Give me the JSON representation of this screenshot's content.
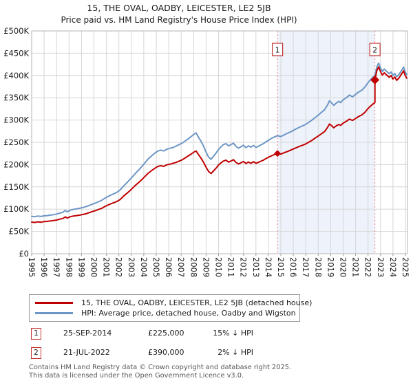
{
  "chart_data": {
    "type": "line",
    "title": "15, THE OVAL, OADBY, LEICESTER, LE2 5JB",
    "subtitle": "Price paid vs. HM Land Registry's House Price Index (HPI)",
    "ylim_gbp": [
      0,
      500000
    ],
    "y_tick_labels": [
      "£0",
      "£50K",
      "£100K",
      "£150K",
      "£200K",
      "£250K",
      "£300K",
      "£350K",
      "£400K",
      "£450K",
      "£500K"
    ],
    "x_tick_labels": [
      "1995",
      "1996",
      "1997",
      "1998",
      "1999",
      "2000",
      "2001",
      "2002",
      "2003",
      "2004",
      "2005",
      "2006",
      "2007",
      "2008",
      "2009",
      "2010",
      "2011",
      "2012",
      "2013",
      "2014",
      "2015",
      "2016",
      "2017",
      "2018",
      "2019",
      "2020",
      "2021",
      "2022",
      "2023",
      "2024",
      "2025"
    ],
    "grid": true,
    "legend_position": "bottom",
    "highlight_band": {
      "from_year": 2014.73,
      "to_year": 2022.55,
      "color": "#edf2fb"
    },
    "marker_line_color": "#f47d7d",
    "series": [
      {
        "id": "hpi-line",
        "name": "HPI: Average price, detached house, Oadby and Wigston",
        "color": "#6c96c6",
        "points_year_gbpk": [
          [
            1995.0,
            84
          ],
          [
            1995.25,
            83
          ],
          [
            1995.5,
            84.5
          ],
          [
            1995.75,
            83.5
          ],
          [
            1996.0,
            85
          ],
          [
            1996.25,
            85.5
          ],
          [
            1996.5,
            86.5
          ],
          [
            1996.75,
            87.5
          ],
          [
            1997.0,
            89
          ],
          [
            1997.25,
            91
          ],
          [
            1997.5,
            93
          ],
          [
            1997.7,
            97
          ],
          [
            1997.85,
            94
          ],
          [
            1998.1,
            97.5
          ],
          [
            1998.35,
            99.5
          ],
          [
            1998.6,
            100.5
          ],
          [
            1998.85,
            102
          ],
          [
            1999.1,
            103.5
          ],
          [
            1999.35,
            105.5
          ],
          [
            1999.6,
            108
          ],
          [
            1999.85,
            111
          ],
          [
            2000.1,
            113.5
          ],
          [
            2000.35,
            116.5
          ],
          [
            2000.6,
            119.5
          ],
          [
            2000.85,
            124
          ],
          [
            2001.1,
            128
          ],
          [
            2001.35,
            131.5
          ],
          [
            2001.6,
            134.5
          ],
          [
            2001.85,
            138
          ],
          [
            2002.1,
            143
          ],
          [
            2002.35,
            151
          ],
          [
            2002.6,
            158
          ],
          [
            2002.85,
            165.5
          ],
          [
            2003.1,
            173
          ],
          [
            2003.35,
            181
          ],
          [
            2003.6,
            188
          ],
          [
            2003.85,
            196
          ],
          [
            2004.1,
            204
          ],
          [
            2004.35,
            212.5
          ],
          [
            2004.6,
            219
          ],
          [
            2004.85,
            225
          ],
          [
            2005.1,
            230
          ],
          [
            2005.35,
            232.5
          ],
          [
            2005.6,
            230.5
          ],
          [
            2005.85,
            234.5
          ],
          [
            2006.1,
            236.5
          ],
          [
            2006.35,
            238.5
          ],
          [
            2006.6,
            241.5
          ],
          [
            2006.85,
            245
          ],
          [
            2007.1,
            248.5
          ],
          [
            2007.35,
            253.5
          ],
          [
            2007.6,
            258.5
          ],
          [
            2007.85,
            264
          ],
          [
            2008.05,
            269
          ],
          [
            2008.2,
            271
          ],
          [
            2008.4,
            261
          ],
          [
            2008.6,
            252
          ],
          [
            2008.8,
            241
          ],
          [
            2009.0,
            228
          ],
          [
            2009.2,
            217
          ],
          [
            2009.4,
            212
          ],
          [
            2009.6,
            219
          ],
          [
            2009.8,
            226
          ],
          [
            2010.0,
            234
          ],
          [
            2010.2,
            240
          ],
          [
            2010.4,
            245
          ],
          [
            2010.6,
            247
          ],
          [
            2010.8,
            242
          ],
          [
            2011.0,
            245
          ],
          [
            2011.2,
            248
          ],
          [
            2011.4,
            241
          ],
          [
            2011.6,
            237
          ],
          [
            2011.8,
            240
          ],
          [
            2012.0,
            243.5
          ],
          [
            2012.2,
            238
          ],
          [
            2012.4,
            242
          ],
          [
            2012.6,
            239
          ],
          [
            2012.8,
            243
          ],
          [
            2013.0,
            238.5
          ],
          [
            2013.2,
            241
          ],
          [
            2013.4,
            244
          ],
          [
            2013.6,
            247
          ],
          [
            2013.8,
            251
          ],
          [
            2014.0,
            254.5
          ],
          [
            2014.2,
            258
          ],
          [
            2014.4,
            261
          ],
          [
            2014.6,
            263.5
          ],
          [
            2014.73,
            265
          ],
          [
            2015.0,
            263
          ],
          [
            2015.25,
            266.5
          ],
          [
            2015.5,
            270
          ],
          [
            2015.75,
            273
          ],
          [
            2016.0,
            276.5
          ],
          [
            2016.25,
            280.5
          ],
          [
            2016.5,
            284
          ],
          [
            2016.75,
            287
          ],
          [
            2017.0,
            290.5
          ],
          [
            2017.25,
            295
          ],
          [
            2017.5,
            300
          ],
          [
            2017.75,
            305.5
          ],
          [
            2018.0,
            311
          ],
          [
            2018.25,
            317
          ],
          [
            2018.5,
            323
          ],
          [
            2018.75,
            334
          ],
          [
            2018.9,
            343
          ],
          [
            2019.05,
            339
          ],
          [
            2019.25,
            333
          ],
          [
            2019.45,
            338
          ],
          [
            2019.65,
            342
          ],
          [
            2019.8,
            339
          ],
          [
            2020.0,
            345.5
          ],
          [
            2020.25,
            350
          ],
          [
            2020.5,
            356
          ],
          [
            2020.75,
            352
          ],
          [
            2021.0,
            357.5
          ],
          [
            2021.25,
            363
          ],
          [
            2021.5,
            367
          ],
          [
            2021.75,
            374
          ],
          [
            2022.0,
            384
          ],
          [
            2022.25,
            392
          ],
          [
            2022.4,
            396
          ],
          [
            2022.55,
            400
          ],
          [
            2022.7,
            419
          ],
          [
            2022.85,
            428
          ],
          [
            2023.0,
            417
          ],
          [
            2023.15,
            409
          ],
          [
            2023.3,
            414.5
          ],
          [
            2023.5,
            409
          ],
          [
            2023.7,
            404
          ],
          [
            2023.85,
            408
          ],
          [
            2024.0,
            400
          ],
          [
            2024.15,
            404.5
          ],
          [
            2024.3,
            397
          ],
          [
            2024.5,
            403
          ],
          [
            2024.7,
            412
          ],
          [
            2024.85,
            419
          ],
          [
            2024.95,
            410
          ],
          [
            2025.1,
            402
          ]
        ]
      },
      {
        "id": "price-line",
        "name": "15, THE OVAL, OADBY, LEICESTER, LE2 5JB (detached house)",
        "color": "#c00000",
        "points_year_gbpk": [
          [
            1995.0,
            71
          ],
          [
            1995.25,
            70
          ],
          [
            1995.5,
            71.5
          ],
          [
            1995.75,
            70.5
          ],
          [
            1996.0,
            72
          ],
          [
            1996.25,
            72.5
          ],
          [
            1996.5,
            73.5
          ],
          [
            1996.75,
            74.5
          ],
          [
            1997.0,
            75.5
          ],
          [
            1997.25,
            77.5
          ],
          [
            1997.5,
            79
          ],
          [
            1997.7,
            82.5
          ],
          [
            1997.85,
            80
          ],
          [
            1998.1,
            83
          ],
          [
            1998.35,
            84.5
          ],
          [
            1998.6,
            85.5
          ],
          [
            1998.85,
            86.5
          ],
          [
            1999.1,
            88
          ],
          [
            1999.35,
            89.5
          ],
          [
            1999.6,
            92
          ],
          [
            1999.85,
            94.5
          ],
          [
            2000.1,
            96.5
          ],
          [
            2000.35,
            99
          ],
          [
            2000.6,
            101.5
          ],
          [
            2000.85,
            105.5
          ],
          [
            2001.1,
            109
          ],
          [
            2001.35,
            112
          ],
          [
            2001.6,
            114.5
          ],
          [
            2001.85,
            117.5
          ],
          [
            2002.1,
            121.5
          ],
          [
            2002.35,
            128.5
          ],
          [
            2002.6,
            134.5
          ],
          [
            2002.85,
            140.5
          ],
          [
            2003.1,
            147
          ],
          [
            2003.35,
            154
          ],
          [
            2003.6,
            160
          ],
          [
            2003.85,
            166.5
          ],
          [
            2004.1,
            173.5
          ],
          [
            2004.35,
            180.5
          ],
          [
            2004.6,
            186
          ],
          [
            2004.85,
            191
          ],
          [
            2005.1,
            195.5
          ],
          [
            2005.35,
            197.5
          ],
          [
            2005.6,
            196
          ],
          [
            2005.85,
            199.5
          ],
          [
            2006.1,
            201
          ],
          [
            2006.35,
            203
          ],
          [
            2006.6,
            205
          ],
          [
            2006.85,
            208
          ],
          [
            2007.1,
            211
          ],
          [
            2007.35,
            215.5
          ],
          [
            2007.6,
            220
          ],
          [
            2007.85,
            224.5
          ],
          [
            2008.05,
            228.5
          ],
          [
            2008.2,
            230.5
          ],
          [
            2008.4,
            222
          ],
          [
            2008.6,
            214
          ],
          [
            2008.8,
            205
          ],
          [
            2009.0,
            194
          ],
          [
            2009.2,
            184.5
          ],
          [
            2009.4,
            180
          ],
          [
            2009.6,
            186
          ],
          [
            2009.8,
            192
          ],
          [
            2010.0,
            199
          ],
          [
            2010.2,
            204
          ],
          [
            2010.4,
            208
          ],
          [
            2010.6,
            210
          ],
          [
            2010.8,
            205.5
          ],
          [
            2011.0,
            208
          ],
          [
            2011.2,
            211
          ],
          [
            2011.4,
            205
          ],
          [
            2011.6,
            201.5
          ],
          [
            2011.8,
            204
          ],
          [
            2012.0,
            207
          ],
          [
            2012.2,
            202.5
          ],
          [
            2012.4,
            205.5
          ],
          [
            2012.6,
            203
          ],
          [
            2012.8,
            206.5
          ],
          [
            2013.0,
            203
          ],
          [
            2013.2,
            205
          ],
          [
            2013.4,
            207.5
          ],
          [
            2013.6,
            210
          ],
          [
            2013.8,
            213.5
          ],
          [
            2014.0,
            216.5
          ],
          [
            2014.2,
            219
          ],
          [
            2014.4,
            221.5
          ],
          [
            2014.6,
            224
          ],
          [
            2014.73,
            225
          ],
          [
            2015.0,
            223.5
          ],
          [
            2015.25,
            226.5
          ],
          [
            2015.5,
            229
          ],
          [
            2015.75,
            232
          ],
          [
            2016.0,
            235
          ],
          [
            2016.25,
            238
          ],
          [
            2016.5,
            241
          ],
          [
            2016.75,
            243.5
          ],
          [
            2017.0,
            246.5
          ],
          [
            2017.25,
            250.5
          ],
          [
            2017.5,
            254.5
          ],
          [
            2017.75,
            259.5
          ],
          [
            2018.0,
            264
          ],
          [
            2018.25,
            269
          ],
          [
            2018.5,
            274
          ],
          [
            2018.75,
            283.5
          ],
          [
            2018.9,
            291
          ],
          [
            2019.05,
            288
          ],
          [
            2019.25,
            282.5
          ],
          [
            2019.45,
            287
          ],
          [
            2019.65,
            290
          ],
          [
            2019.8,
            288
          ],
          [
            2020.0,
            293
          ],
          [
            2020.25,
            297
          ],
          [
            2020.5,
            302
          ],
          [
            2020.75,
            299
          ],
          [
            2021.0,
            303.5
          ],
          [
            2021.25,
            308
          ],
          [
            2021.5,
            311.5
          ],
          [
            2021.75,
            317.5
          ],
          [
            2022.0,
            326
          ],
          [
            2022.25,
            332.5
          ],
          [
            2022.4,
            336
          ],
          [
            2022.55,
            339.5
          ],
          [
            2022.55,
            390
          ],
          [
            2022.7,
            410.5
          ],
          [
            2022.85,
            419.5
          ],
          [
            2023.0,
            408.5
          ],
          [
            2023.15,
            401
          ],
          [
            2023.3,
            406
          ],
          [
            2023.5,
            401
          ],
          [
            2023.7,
            396
          ],
          [
            2023.85,
            400
          ],
          [
            2024.0,
            392
          ],
          [
            2024.15,
            396.5
          ],
          [
            2024.3,
            389
          ],
          [
            2024.5,
            395
          ],
          [
            2024.7,
            404
          ],
          [
            2024.85,
            410.5
          ],
          [
            2024.95,
            402
          ],
          [
            2025.1,
            394
          ]
        ]
      }
    ],
    "sales": [
      {
        "label": "1",
        "year": 2014.73,
        "price_gbpk": 225
      },
      {
        "label": "2",
        "year": 2022.55,
        "price_gbpk": 390
      }
    ]
  },
  "legend": {
    "items": [
      {
        "label": "15, THE OVAL, OADBY, LEICESTER, LE2 5JB (detached house)",
        "color": "#c00000"
      },
      {
        "label": "HPI: Average price, detached house, Oadby and Wigston",
        "color": "#6c96c6"
      }
    ]
  },
  "annotations": {
    "rows": [
      {
        "num": "1",
        "date": "25-SEP-2014",
        "price": "£225,000",
        "delta": "15% ↓ HPI"
      },
      {
        "num": "2",
        "date": "21-JUL-2022",
        "price": "£390,000",
        "delta": "2% ↓ HPI"
      }
    ]
  },
  "footer": {
    "line1": "Contains HM Land Registry data © Crown copyright and database right 2025.",
    "line2": "This data is licensed under the Open Government Licence v3.0."
  }
}
